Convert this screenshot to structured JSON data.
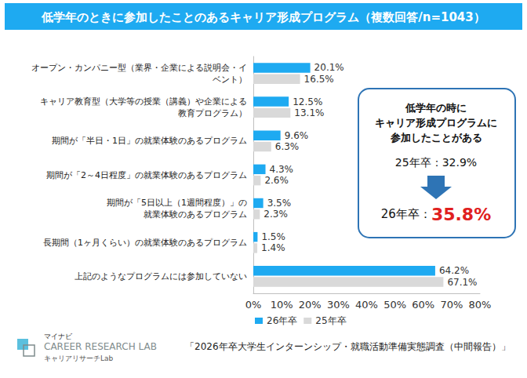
{
  "chart_data": {
    "type": "bar",
    "title": "低学年のときに参加したことのあるキャリア形成プログラム（複数回答/n=1043）",
    "orientation": "horizontal",
    "categories": [
      "オープン・カンパニー型（業界・企業による説明会・イ\nベント）",
      "キャリア教育型（大学等の授業（講義）や企業による\n教育プログラム）",
      "期間が「半日・1日」の就業体験のあるプログラム",
      "期間が「2～4日程度」の就業体験のあるプログラム",
      "期間が「5日以上（1週間程度）」の\n就業体験のあるプログラム",
      "長期間（1ヶ月くらい）の就業体験のあるプログラム",
      "上記のようなプログラムには参加していない"
    ],
    "series": [
      {
        "name": "26年卒",
        "color": "#1eaaf1",
        "values": [
          20.1,
          12.5,
          9.6,
          4.3,
          3.5,
          1.5,
          64.2
        ],
        "value_labels": [
          "20.1%",
          "12.5%",
          "9.6%",
          "4.3%",
          "3.5%",
          "1.5%",
          "64.2%"
        ]
      },
      {
        "name": "25年卒",
        "color": "#d9d9d9",
        "values": [
          16.5,
          13.1,
          6.3,
          2.6,
          2.3,
          1.4,
          67.1
        ],
        "value_labels": [
          "16.5%",
          "13.1%",
          "6.3%",
          "2.6%",
          "2.3%",
          "1.4%",
          "67.1%"
        ]
      }
    ],
    "xlim": [
      0,
      80
    ],
    "xticks": [
      {
        "value": 0,
        "label": "0%"
      },
      {
        "value": 10,
        "label": "10%"
      },
      {
        "value": 20,
        "label": "20%"
      },
      {
        "value": 30,
        "label": "30%"
      },
      {
        "value": 40,
        "label": "40%"
      },
      {
        "value": 50,
        "label": "50%"
      },
      {
        "value": 60,
        "label": "60%"
      },
      {
        "value": 70,
        "label": "70%"
      },
      {
        "value": 80,
        "label": "80%"
      }
    ],
    "grid": false,
    "legend": "bottom",
    "data_labels": true,
    "annotations": [
      "低学年の時に\nキャリア形成プログラムに\n参加したことがある",
      "25年卒：32.9%",
      "26年卒：35.8%",
      "「2026年卒大学生インターンシップ・就職活動準備実態調査（中間報告）」",
      "マイナビ",
      "CAREER RESEARCH LAB",
      "キャリアリサーチLab"
    ]
  }
}
